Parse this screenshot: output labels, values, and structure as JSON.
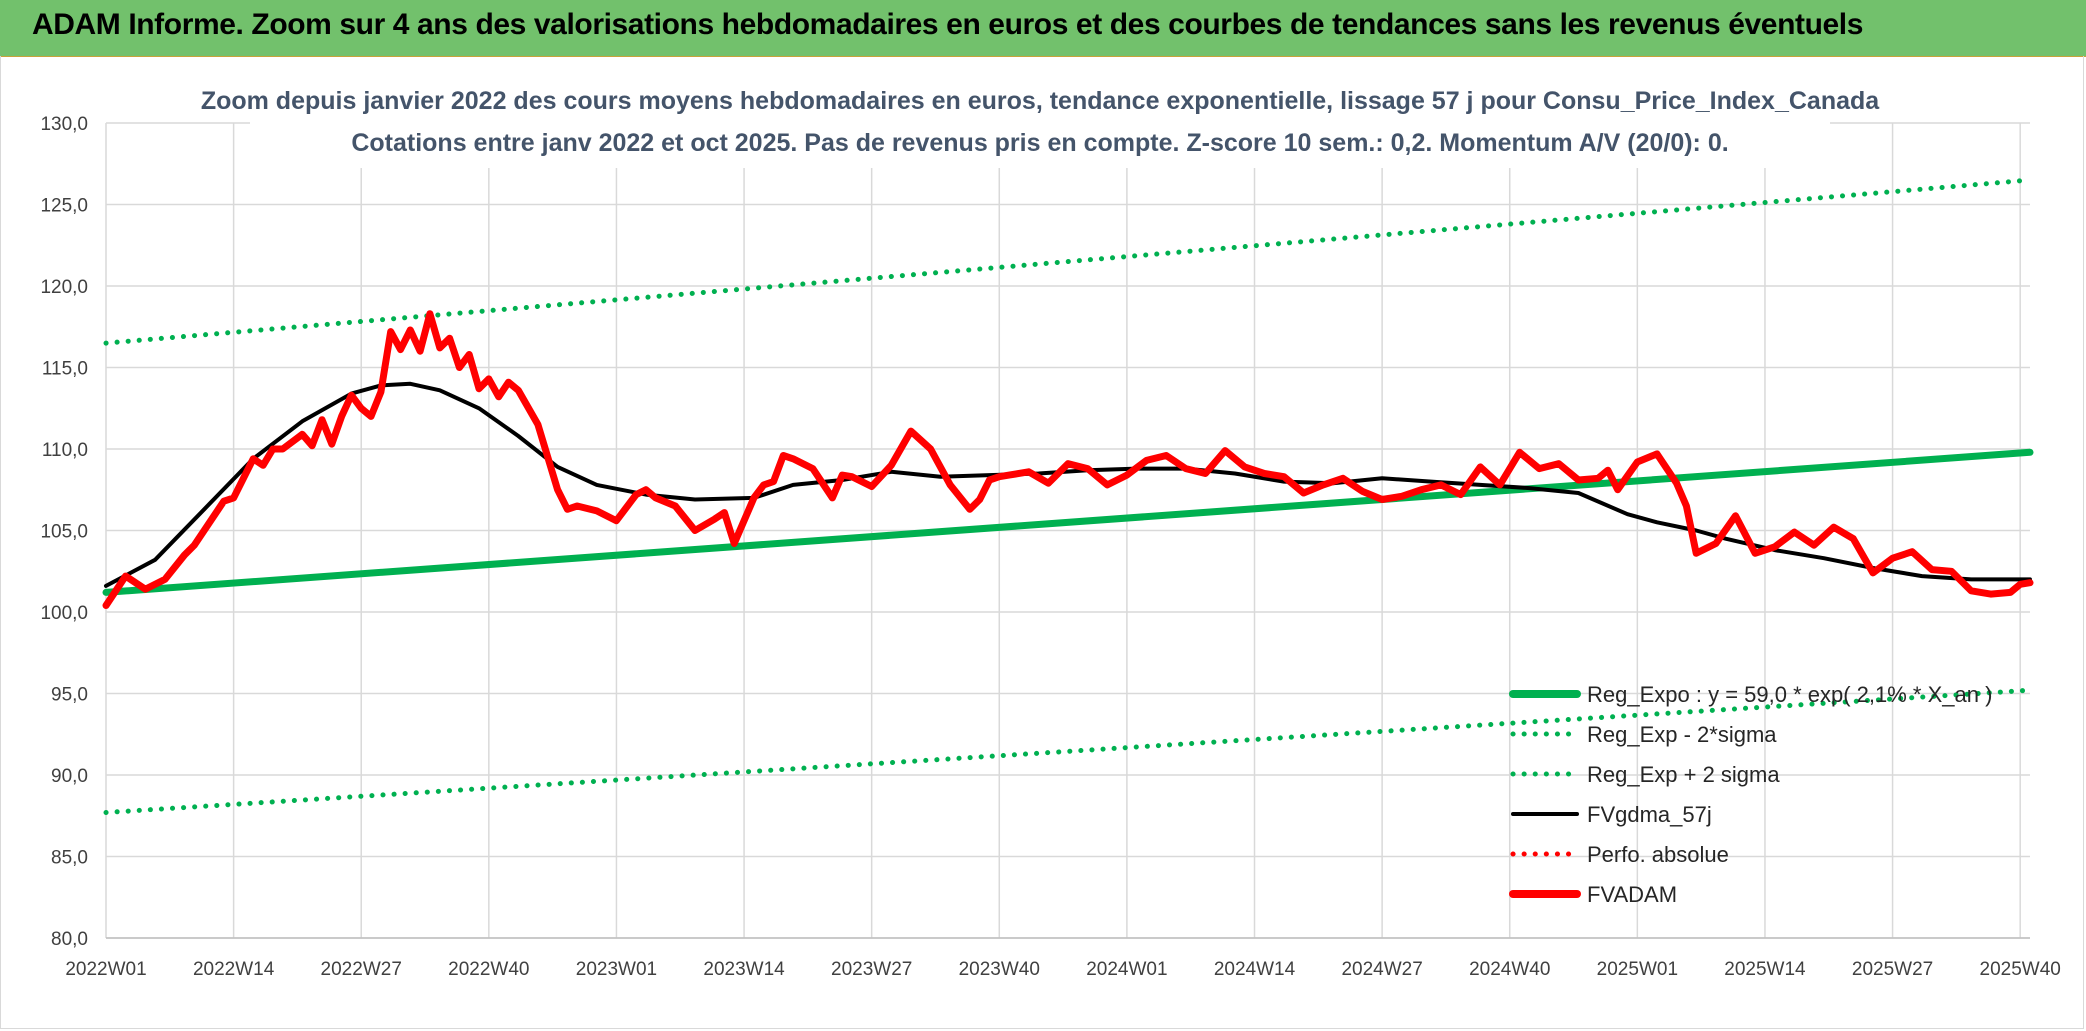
{
  "header": {
    "title": "ADAM Informe. Zoom sur 4 ans des valorisations hebdomadaires en euros et des courbes de tendances sans les revenus éventuels"
  },
  "colors": {
    "banner": "#72c16c",
    "trend": "#00b050",
    "band": "#00b050",
    "smooth": "#000000",
    "adam": "#ff0000",
    "grid": "#d9d9d9"
  },
  "chart_data": {
    "type": "line",
    "title": "Zoom depuis janvier 2022 des cours moyens hebdomadaires en euros, tendance exponentielle, lissage 57 j pour Consu_Price_Index_Canada",
    "subtitle": "Cotations entre janv 2022 et oct 2025. Pas de revenus pris en compte. Z-score 10 sem.: 0,2. Momentum A/V (20/0): 0.",
    "xlabel": "",
    "ylabel": "",
    "ylim": [
      80,
      130
    ],
    "yticks": [
      "80,0",
      "85,0",
      "90,0",
      "95,0",
      "100,0",
      "105,0",
      "110,0",
      "115,0",
      "120,0",
      "125,0",
      "130,0"
    ],
    "x_range": [
      0,
      196
    ],
    "xtick_positions": [
      0,
      13,
      26,
      39,
      52,
      65,
      78,
      91,
      104,
      117,
      130,
      143,
      156,
      169,
      182,
      195
    ],
    "x_tick_labels": [
      "2022W01",
      "2022W14",
      "2022W27",
      "2022W40",
      "2023W01",
      "2023W14",
      "2023W27",
      "2023W40",
      "2024W01",
      "2024W14",
      "2024W27",
      "2024W40",
      "2025W01",
      "2025W14",
      "2025W27",
      "2025W40"
    ],
    "legend_position": "bottom-right",
    "series": [
      {
        "name": "Reg_Expo : y = 59,0 * exp( 2,1% * X_an )",
        "style": "solid-thick",
        "color": "#00b050",
        "x": [
          0,
          196
        ],
        "values": [
          101.2,
          109.8
        ]
      },
      {
        "name": "Reg_Exp - 2*sigma",
        "style": "dotted",
        "color": "#00b050",
        "x": [
          0,
          196
        ],
        "values": [
          87.7,
          95.2
        ]
      },
      {
        "name": "Reg_Exp + 2 sigma",
        "style": "dotted",
        "color": "#00b050",
        "x": [
          0,
          196
        ],
        "values": [
          116.5,
          126.5
        ]
      },
      {
        "name": "FVgdma_57j",
        "style": "solid",
        "color": "#000000",
        "x": [
          0,
          5,
          10,
          15,
          20,
          25,
          28,
          31,
          34,
          38,
          42,
          46,
          50,
          55,
          60,
          66,
          70,
          75,
          80,
          85,
          90,
          95,
          100,
          105,
          110,
          115,
          120,
          125,
          130,
          135,
          140,
          145,
          150,
          155,
          158,
          162,
          165,
          170,
          175,
          180,
          185,
          190,
          196
        ],
        "values": [
          101.6,
          103.2,
          106.3,
          109.4,
          111.7,
          113.4,
          113.9,
          114.0,
          113.6,
          112.5,
          110.8,
          108.9,
          107.8,
          107.2,
          106.9,
          107.0,
          107.8,
          108.1,
          108.6,
          108.3,
          108.4,
          108.5,
          108.7,
          108.8,
          108.8,
          108.5,
          108.0,
          107.9,
          108.2,
          108.0,
          107.8,
          107.6,
          107.3,
          106.0,
          105.5,
          105.0,
          104.5,
          103.8,
          103.3,
          102.7,
          102.2,
          102.0,
          102.0
        ]
      },
      {
        "name": "Perfo. absolue",
        "style": "dotted",
        "color": "#ff0000",
        "x": [],
        "values": []
      },
      {
        "name": "FVADAM",
        "style": "solid-thick",
        "color": "#ff0000",
        "x": [
          0,
          2,
          4,
          6,
          8,
          9,
          12,
          13,
          15,
          16,
          17,
          18,
          20,
          21,
          22,
          23,
          24,
          25,
          26,
          27,
          28,
          29,
          30,
          31,
          32,
          33,
          34,
          35,
          36,
          37,
          38,
          39,
          40,
          41,
          42,
          44,
          46,
          47,
          48,
          50,
          52,
          54,
          55,
          56,
          58,
          60,
          62,
          63,
          64,
          66,
          67,
          68,
          69,
          70,
          72,
          74,
          75,
          76,
          78,
          80,
          82,
          84,
          86,
          88,
          89,
          90,
          91,
          92,
          94,
          96,
          98,
          100,
          102,
          104,
          106,
          108,
          110,
          112,
          114,
          116,
          118,
          120,
          122,
          124,
          126,
          128,
          130,
          132,
          134,
          136,
          138,
          140,
          142,
          144,
          146,
          148,
          150,
          152,
          153,
          154,
          156,
          158,
          160,
          161,
          162,
          164,
          166,
          168,
          170,
          172,
          174,
          176,
          178,
          180,
          182,
          184,
          186,
          188,
          190,
          192,
          194,
          195,
          196
        ],
        "values": [
          100.4,
          102.2,
          101.4,
          102.0,
          103.5,
          104.1,
          106.8,
          107.0,
          109.4,
          109.0,
          110.0,
          110.0,
          110.9,
          110.2,
          111.8,
          110.3,
          112.0,
          113.3,
          112.5,
          112.0,
          113.5,
          117.2,
          116.1,
          117.3,
          116.0,
          118.3,
          116.2,
          116.8,
          115.0,
          115.8,
          113.7,
          114.3,
          113.2,
          114.1,
          113.6,
          111.5,
          107.5,
          106.3,
          106.5,
          106.2,
          105.6,
          107.2,
          107.5,
          107.0,
          106.5,
          105.0,
          105.7,
          106.1,
          104.2,
          107.0,
          107.8,
          108.0,
          109.6,
          109.4,
          108.8,
          107.0,
          108.4,
          108.3,
          107.7,
          109.0,
          111.1,
          110.0,
          107.8,
          106.3,
          106.9,
          108.1,
          108.3,
          108.4,
          108.6,
          107.9,
          109.1,
          108.8,
          107.8,
          108.4,
          109.3,
          109.6,
          108.8,
          108.5,
          109.9,
          108.9,
          108.5,
          108.3,
          107.3,
          107.8,
          108.2,
          107.4,
          106.9,
          107.1,
          107.5,
          107.8,
          107.2,
          108.9,
          107.8,
          109.8,
          108.8,
          109.1,
          108.1,
          108.2,
          108.7,
          107.5,
          109.2,
          109.7,
          107.9,
          106.5,
          103.6,
          104.2,
          105.9,
          103.6,
          104.0,
          104.9,
          104.1,
          105.2,
          104.5,
          102.4,
          103.3,
          103.7,
          102.6,
          102.5,
          101.3,
          101.1,
          101.2,
          101.7,
          101.8
        ]
      }
    ]
  }
}
